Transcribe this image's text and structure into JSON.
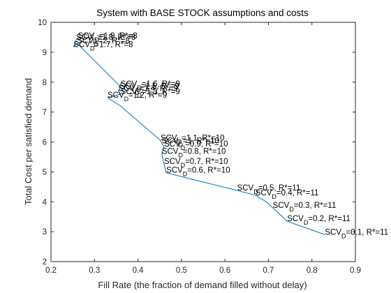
{
  "chart_data": {
    "type": "line",
    "title": "System with BASE STOCK assumptions and costs",
    "xlabel": "Fill Rate (the fraction of demand filled without delay)",
    "ylabel": "Total Cost per satisfied demand",
    "xlim": [
      0.2,
      0.9
    ],
    "ylim": [
      2,
      10
    ],
    "x_ticks": [
      "0.2",
      "0.3",
      "0.4",
      "0.5",
      "0.6",
      "0.7",
      "0.8",
      "0.9"
    ],
    "y_ticks": [
      "2",
      "3",
      "4",
      "5",
      "6",
      "7",
      "8",
      "9",
      "10"
    ],
    "grid": false,
    "line_color": "#0072BD",
    "series": [
      {
        "x": [
          0.83,
          0.743,
          0.71,
          0.695,
          0.67,
          0.628,
          0.465,
          0.46,
          0.455,
          0.46,
          0.455,
          0.452,
          0.36,
          0.33,
          0.36,
          0.355,
          0.358,
          0.36,
          0.26,
          0.252,
          0.258,
          0.262
        ],
        "y": [
          2.9,
          3.35,
          3.8,
          4.0,
          4.22,
          4.38,
          4.97,
          5.27,
          5.6,
          5.85,
          5.95,
          6.05,
          7.2,
          7.48,
          7.6,
          7.7,
          7.78,
          7.85,
          9.3,
          9.17,
          9.42,
          9.46
        ]
      }
    ],
    "annotations": [
      {
        "x": 0.83,
        "y": 2.9,
        "label": "SCV",
        "sub": "D",
        "rest": "=0.1, R*=11"
      },
      {
        "x": 0.743,
        "y": 3.35,
        "label": "SCV",
        "sub": "D",
        "rest": "=0.2, R*=11"
      },
      {
        "x": 0.71,
        "y": 3.8,
        "label": "SCV",
        "sub": "D",
        "rest": "=0.3, R*=11"
      },
      {
        "x": 0.67,
        "y": 4.22,
        "label": "SCV",
        "sub": "D",
        "rest": "=0.4, R*=11"
      },
      {
        "x": 0.628,
        "y": 4.38,
        "label": "SCV",
        "sub": "D",
        "rest": "=0.5, R*=11"
      },
      {
        "x": 0.465,
        "y": 4.97,
        "label": "SCV",
        "sub": "D",
        "rest": "=0.6, R*=10"
      },
      {
        "x": 0.46,
        "y": 5.27,
        "label": "SCV",
        "sub": "D",
        "rest": "=0.7, R*=10"
      },
      {
        "x": 0.455,
        "y": 5.6,
        "label": "SCV",
        "sub": "D",
        "rest": "=0.8, R*=10"
      },
      {
        "x": 0.46,
        "y": 5.85,
        "label": "SCV",
        "sub": "D",
        "rest": "=0.9, R*=10"
      },
      {
        "x": 0.455,
        "y": 5.95,
        "label": "SCV",
        "sub": "D",
        "rest": "=1, R*=10"
      },
      {
        "x": 0.452,
        "y": 6.05,
        "label": "SCV",
        "sub": "D",
        "rest": "=1.1, R*=10"
      },
      {
        "x": 0.33,
        "y": 7.48,
        "label": "SCV",
        "sub": "D",
        "rest": "=1.2, R*=9"
      },
      {
        "x": 0.36,
        "y": 7.6,
        "label": "SCV",
        "sub": "D",
        "rest": "=1.3, R*=9"
      },
      {
        "x": 0.355,
        "y": 7.7,
        "label": "SCV",
        "sub": "D",
        "rest": "=1.4, R*=9"
      },
      {
        "x": 0.358,
        "y": 7.78,
        "label": "SCV",
        "sub": "D",
        "rest": "=1.5, R*=9"
      },
      {
        "x": 0.36,
        "y": 7.85,
        "label": "SCV",
        "sub": "D",
        "rest": "=1.6, R*=9"
      },
      {
        "x": 0.252,
        "y": 9.17,
        "label": "SCV",
        "sub": "D",
        "rest": "=1.7, R*=8"
      },
      {
        "x": 0.258,
        "y": 9.42,
        "label": "SCV",
        "sub": "D",
        "rest": "=1.8, R*=8"
      },
      {
        "x": 0.262,
        "y": 9.46,
        "label": "SCV",
        "sub": "D",
        "rest": "=1.9, R*=8"
      },
      {
        "x": 0.26,
        "y": 9.3,
        "label": "SCV",
        "sub": "D",
        "rest": "=2, R*=8"
      }
    ]
  }
}
